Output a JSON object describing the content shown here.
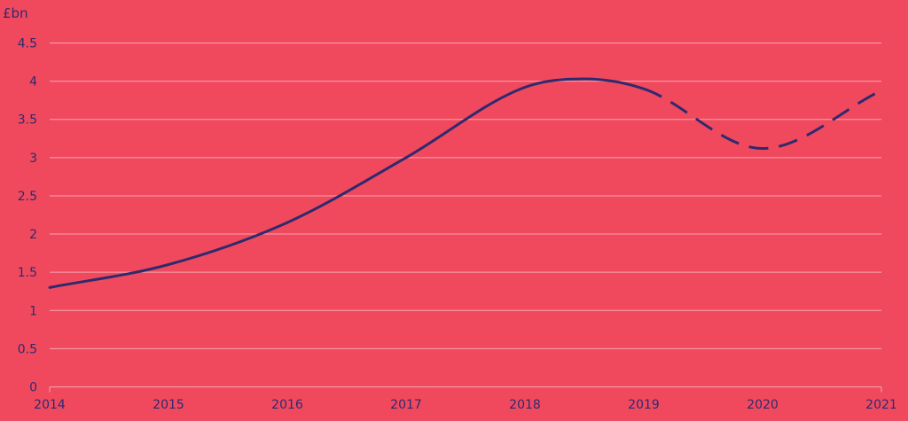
{
  "chart_data": {
    "type": "line",
    "title": "",
    "xlabel": "",
    "ylabel": "£bn",
    "x": [
      2014,
      2015,
      2016,
      2017,
      2018,
      2018.5,
      2019,
      2020,
      2021
    ],
    "series": [
      {
        "values": [
          1.3,
          1.6,
          2.15,
          3.0,
          3.92,
          4.03,
          3.9,
          3.12,
          3.88
        ],
        "solid_until_x": 2019
      }
    ],
    "xticks": [
      "2014",
      "2015",
      "2016",
      "2017",
      "2018",
      "2019",
      "2020",
      "2021"
    ],
    "yticks": [
      "0",
      "0.5",
      "1",
      "1.5",
      "2",
      "2.5",
      "3",
      "3.5",
      "4",
      "4.5"
    ],
    "xlim": [
      2014,
      2021
    ],
    "ylim": [
      0,
      4.5
    ],
    "grid": true,
    "colors": {
      "background": "#f0495e",
      "line": "#2e2a6e",
      "grid": "#f6a4b0",
      "text": "#2e2a6e"
    }
  }
}
